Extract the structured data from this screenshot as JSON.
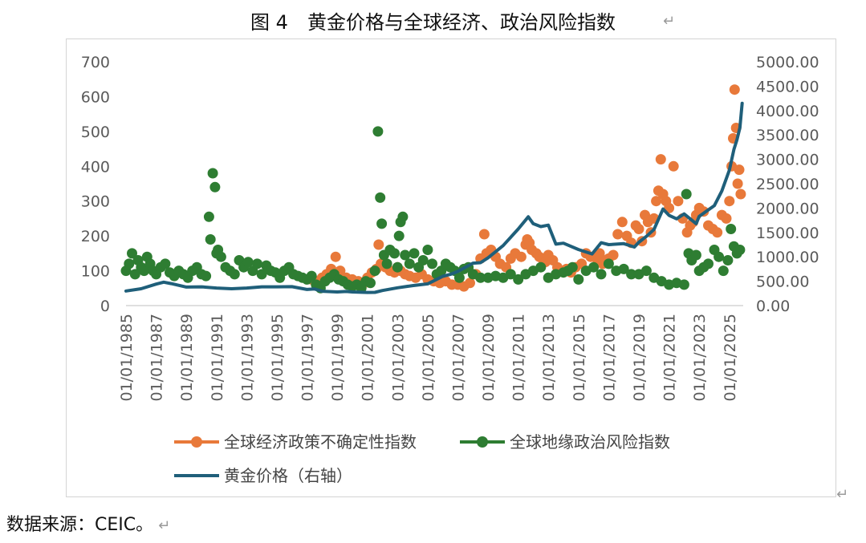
{
  "title": "图 4　黄金价格与全球经济、政治风险指数",
  "source": "数据来源：CEIC。",
  "colors": {
    "epu": "#E8793A",
    "gpr": "#2E7D32",
    "gold": "#1F5F7A",
    "frame": "#d4d4d4",
    "tick_text": "#5a5a5a"
  },
  "chart_data": {
    "type": "line",
    "title": "",
    "xlabel": "",
    "ylabel_left": "",
    "ylabel_right": "",
    "x_range": [
      "1985-01-01",
      "2025-12-01"
    ],
    "x_tick_labels": [
      "01/01/1985",
      "01/01/1987",
      "01/01/1989",
      "01/01/1991",
      "01/01/1993",
      "01/01/1995",
      "01/01/1997",
      "01/01/1999",
      "01/01/2001",
      "01/01/2003",
      "01/01/2005",
      "01/01/2007",
      "01/01/2009",
      "01/01/2011",
      "01/01/2013",
      "01/01/2015",
      "01/01/2017",
      "01/01/2019",
      "01/01/2021",
      "01/01/2023",
      "01/01/2025"
    ],
    "y_left": {
      "min": 0,
      "max": 700,
      "ticks": [
        "0",
        "100",
        "200",
        "300",
        "400",
        "500",
        "600",
        "700"
      ]
    },
    "y_right": {
      "min": 0,
      "max": 5000,
      "ticks": [
        "0.00",
        "500.00",
        "1000.00",
        "1500.00",
        "2000.00",
        "2500.00",
        "3000.00",
        "3500.00",
        "4000.00",
        "4500.00",
        "5000.00"
      ]
    },
    "grid": false,
    "legend_position": "bottom",
    "series": [
      {
        "name": "全球经济政策不确定性指数",
        "type": "scatter",
        "axis": "left",
        "x": [
          1997.3,
          1997.6,
          1998.0,
          1998.3,
          1998.6,
          1998.9,
          1999.2,
          1999.6,
          2000.0,
          2000.4,
          2000.8,
          2001.0,
          2001.3,
          2001.6,
          2001.75,
          2001.9,
          2002.2,
          2002.5,
          2002.8,
          2003.0,
          2003.2,
          2003.5,
          2003.8,
          2004.2,
          2004.6,
          2005.0,
          2005.4,
          2005.8,
          2006.2,
          2006.6,
          2007.0,
          2007.4,
          2007.8,
          2008.2,
          2008.5,
          2008.75,
          2008.9,
          2009.2,
          2009.5,
          2009.8,
          2010.2,
          2010.5,
          2010.8,
          2011.2,
          2011.5,
          2011.6,
          2011.75,
          2011.9,
          2012.2,
          2012.4,
          2012.6,
          2012.8,
          2013.0,
          2013.3,
          2013.6,
          2013.9,
          2014.2,
          2014.5,
          2014.8,
          2015.2,
          2015.5,
          2015.8,
          2016.2,
          2016.4,
          2016.6,
          2016.8,
          2017.0,
          2017.3,
          2017.6,
          2017.9,
          2018.2,
          2018.5,
          2018.8,
          2019.0,
          2019.2,
          2019.4,
          2019.6,
          2019.8,
          2020.0,
          2020.15,
          2020.3,
          2020.45,
          2020.6,
          2020.8,
          2021.0,
          2021.3,
          2021.6,
          2021.9,
          2022.2,
          2022.4,
          2022.6,
          2022.8,
          2023.0,
          2023.3,
          2023.6,
          2023.9,
          2024.2,
          2024.5,
          2024.8,
          2025.0,
          2025.15,
          2025.25,
          2025.35,
          2025.45,
          2025.55,
          2025.65,
          2025.75
        ],
        "y": [
          75,
          70,
          80,
          90,
          105,
          140,
          100,
          80,
          75,
          70,
          65,
          80,
          95,
          105,
          175,
          120,
          110,
          100,
          95,
          110,
          100,
          90,
          85,
          80,
          90,
          75,
          70,
          65,
          70,
          60,
          60,
          55,
          65,
          90,
          135,
          205,
          150,
          160,
          140,
          120,
          110,
          135,
          150,
          140,
          175,
          190,
          180,
          160,
          150,
          140,
          135,
          125,
          145,
          130,
          110,
          100,
          105,
          95,
          110,
          120,
          150,
          140,
          135,
          150,
          120,
          130,
          135,
          145,
          205,
          240,
          200,
          180,
          230,
          220,
          185,
          260,
          240,
          210,
          250,
          300,
          330,
          420,
          320,
          300,
          280,
          400,
          300,
          250,
          210,
          230,
          240,
          260,
          280,
          270,
          230,
          220,
          210,
          260,
          250,
          300,
          400,
          480,
          620,
          510,
          350,
          390,
          320
        ]
      },
      {
        "name": "全球地缘政治风险指数",
        "type": "scatter",
        "axis": "left",
        "x": [
          1985.0,
          1985.2,
          1985.4,
          1985.6,
          1985.8,
          1986.0,
          1986.2,
          1986.4,
          1986.6,
          1986.8,
          1987.0,
          1987.3,
          1987.6,
          1987.9,
          1988.2,
          1988.5,
          1988.8,
          1989.1,
          1989.4,
          1989.7,
          1990.0,
          1990.3,
          1990.5,
          1990.6,
          1990.75,
          1990.9,
          1991.0,
          1991.1,
          1991.3,
          1991.6,
          1991.9,
          1992.2,
          1992.5,
          1992.8,
          1993.1,
          1993.4,
          1993.7,
          1994.0,
          1994.3,
          1994.6,
          1994.9,
          1995.2,
          1995.5,
          1995.8,
          1996.1,
          1996.4,
          1996.7,
          1997.0,
          1997.3,
          1997.6,
          1997.9,
          1998.2,
          1998.5,
          1998.8,
          1999.1,
          1999.4,
          1999.7,
          2000.0,
          2000.3,
          2000.6,
          2000.9,
          2001.2,
          2001.5,
          2001.7,
          2001.85,
          2001.95,
          2002.1,
          2002.3,
          2002.5,
          2002.8,
          2003.0,
          2003.1,
          2003.2,
          2003.35,
          2003.5,
          2003.8,
          2004.1,
          2004.4,
          2004.7,
          2005.0,
          2005.3,
          2005.6,
          2005.9,
          2006.2,
          2006.5,
          2006.8,
          2007.1,
          2007.4,
          2007.7,
          2008.0,
          2008.5,
          2009.0,
          2009.5,
          2010.0,
          2010.5,
          2011.0,
          2011.5,
          2012.0,
          2012.5,
          2013.0,
          2013.5,
          2014.0,
          2014.3,
          2014.6,
          2015.0,
          2015.5,
          2016.0,
          2016.5,
          2017.0,
          2017.5,
          2018.0,
          2018.5,
          2019.0,
          2019.5,
          2020.0,
          2020.5,
          2021.0,
          2021.5,
          2022.0,
          2022.15,
          2022.3,
          2022.5,
          2022.8,
          2023.0,
          2023.3,
          2023.6,
          2024.0,
          2024.3,
          2024.6,
          2024.9,
          2025.1,
          2025.3,
          2025.5,
          2025.7
        ],
        "y": [
          100,
          120,
          150,
          90,
          130,
          110,
          100,
          140,
          120,
          100,
          90,
          110,
          120,
          95,
          85,
          100,
          90,
          80,
          100,
          110,
          90,
          85,
          255,
          190,
          380,
          340,
          150,
          160,
          140,
          110,
          100,
          90,
          130,
          110,
          125,
          100,
          120,
          90,
          115,
          100,
          95,
          80,
          100,
          110,
          90,
          85,
          80,
          75,
          85,
          60,
          50,
          70,
          80,
          90,
          75,
          70,
          60,
          55,
          60,
          50,
          70,
          65,
          100,
          500,
          310,
          235,
          145,
          120,
          160,
          150,
          110,
          200,
          240,
          255,
          145,
          120,
          150,
          110,
          130,
          160,
          120,
          90,
          100,
          120,
          110,
          100,
          80,
          105,
          110,
          90,
          80,
          80,
          85,
          80,
          90,
          75,
          90,
          100,
          110,
          80,
          90,
          95,
          100,
          110,
          75,
          100,
          110,
          90,
          120,
          100,
          105,
          90,
          90,
          100,
          80,
          70,
          60,
          65,
          60,
          320,
          150,
          130,
          145,
          100,
          110,
          120,
          160,
          140,
          100,
          130,
          220,
          170,
          150,
          160
        ]
      },
      {
        "name": "黄金价格（右轴）",
        "type": "line",
        "axis": "right",
        "x": [
          1985.0,
          1986.0,
          1987.0,
          1987.5,
          1988.0,
          1989.0,
          1990.0,
          1991.0,
          1992.0,
          1993.0,
          1994.0,
          1995.0,
          1996.0,
          1997.0,
          1997.5,
          1998.0,
          1999.0,
          1999.6,
          2000.0,
          2001.0,
          2001.5,
          2002.0,
          2003.0,
          2004.0,
          2005.0,
          2006.0,
          2006.5,
          2007.0,
          2008.0,
          2008.5,
          2009.0,
          2010.0,
          2011.0,
          2011.67,
          2012.0,
          2012.5,
          2013.0,
          2013.5,
          2014.0,
          2015.0,
          2015.9,
          2016.5,
          2017.0,
          2018.0,
          2018.7,
          2019.0,
          2019.5,
          2020.0,
          2020.6,
          2021.0,
          2021.5,
          2022.0,
          2022.8,
          2023.0,
          2023.5,
          2024.0,
          2024.5,
          2025.0,
          2025.3,
          2025.5,
          2025.7,
          2025.85
        ],
        "y": [
          300,
          345,
          440,
          480,
          450,
          380,
          385,
          360,
          345,
          360,
          385,
          385,
          388,
          330,
          340,
          295,
          280,
          290,
          280,
          270,
          272,
          310,
          365,
          410,
          445,
          600,
          640,
          700,
          870,
          880,
          980,
          1230,
          1570,
          1820,
          1680,
          1620,
          1650,
          1260,
          1280,
          1150,
          1060,
          1290,
          1250,
          1270,
          1200,
          1300,
          1420,
          1560,
          1980,
          1850,
          1780,
          1880,
          1680,
          1830,
          1940,
          2050,
          2350,
          2780,
          3200,
          3400,
          3650,
          4150
        ]
      }
    ]
  }
}
